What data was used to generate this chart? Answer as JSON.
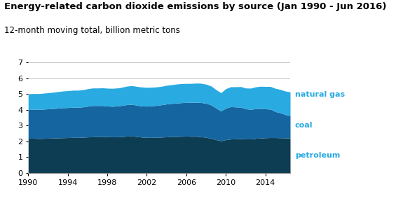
{
  "title": "Energy-related carbon dioxide emissions by source (Jan 1990 - Jun 2016)",
  "subtitle": "12-month moving total, billion metric tons",
  "title_fontsize": 9.5,
  "subtitle_fontsize": 8.5,
  "ylim": [
    0,
    7
  ],
  "yticks": [
    0,
    1,
    2,
    3,
    4,
    5,
    6,
    7
  ],
  "xticks": [
    1990,
    1994,
    1998,
    2002,
    2006,
    2010,
    2014
  ],
  "xlim": [
    1990,
    2016.5
  ],
  "background_color": "#ffffff",
  "petroleum_color": "#0d3d52",
  "coal_color": "#1565a0",
  "natural_gas_color": "#29aae1",
  "label_color": "#29aae1",
  "grid_color": "#bbbbbb",
  "years": [
    1990.0,
    1990.5,
    1991.0,
    1991.5,
    1992.0,
    1992.5,
    1993.0,
    1993.5,
    1994.0,
    1994.5,
    1995.0,
    1995.5,
    1996.0,
    1996.5,
    1997.0,
    1997.5,
    1998.0,
    1998.5,
    1999.0,
    1999.5,
    2000.0,
    2000.5,
    2001.0,
    2001.5,
    2002.0,
    2002.5,
    2003.0,
    2003.5,
    2004.0,
    2004.5,
    2005.0,
    2005.5,
    2006.0,
    2006.5,
    2007.0,
    2007.5,
    2008.0,
    2008.5,
    2009.0,
    2009.5,
    2010.0,
    2010.5,
    2011.0,
    2011.5,
    2012.0,
    2012.5,
    2013.0,
    2013.5,
    2014.0,
    2014.5,
    2015.0,
    2015.5,
    2016.0,
    2016.5
  ],
  "petroleum": [
    2.18,
    2.19,
    2.17,
    2.18,
    2.19,
    2.2,
    2.21,
    2.22,
    2.23,
    2.24,
    2.24,
    2.25,
    2.27,
    2.28,
    2.29,
    2.3,
    2.29,
    2.28,
    2.28,
    2.3,
    2.32,
    2.33,
    2.3,
    2.26,
    2.24,
    2.24,
    2.25,
    2.26,
    2.28,
    2.29,
    2.3,
    2.31,
    2.32,
    2.31,
    2.31,
    2.28,
    2.25,
    2.18,
    2.1,
    2.03,
    2.1,
    2.14,
    2.15,
    2.16,
    2.15,
    2.14,
    2.18,
    2.2,
    2.22,
    2.23,
    2.23,
    2.22,
    2.21,
    2.2
  ],
  "coal": [
    1.82,
    1.84,
    1.84,
    1.85,
    1.86,
    1.87,
    1.88,
    1.9,
    1.9,
    1.91,
    1.91,
    1.92,
    1.95,
    1.98,
    1.97,
    1.96,
    1.94,
    1.93,
    1.95,
    1.97,
    2.0,
    2.01,
    1.98,
    1.97,
    1.98,
    2.0,
    2.02,
    2.05,
    2.08,
    2.1,
    2.12,
    2.13,
    2.14,
    2.15,
    2.16,
    2.17,
    2.15,
    2.12,
    2.0,
    1.88,
    2.0,
    2.05,
    2.02,
    2.0,
    1.9,
    1.88,
    1.88,
    1.88,
    1.83,
    1.8,
    1.65,
    1.58,
    1.48,
    1.42
  ],
  "natural_gas": [
    0.98,
    0.99,
    1.0,
    1.01,
    1.02,
    1.03,
    1.05,
    1.06,
    1.07,
    1.08,
    1.08,
    1.09,
    1.1,
    1.11,
    1.11,
    1.12,
    1.13,
    1.14,
    1.14,
    1.15,
    1.17,
    1.18,
    1.19,
    1.2,
    1.19,
    1.18,
    1.17,
    1.17,
    1.18,
    1.19,
    1.2,
    1.21,
    1.2,
    1.2,
    1.21,
    1.22,
    1.21,
    1.2,
    1.17,
    1.16,
    1.23,
    1.26,
    1.28,
    1.3,
    1.32,
    1.34,
    1.38,
    1.4,
    1.42,
    1.44,
    1.47,
    1.48,
    1.49,
    1.5
  ]
}
